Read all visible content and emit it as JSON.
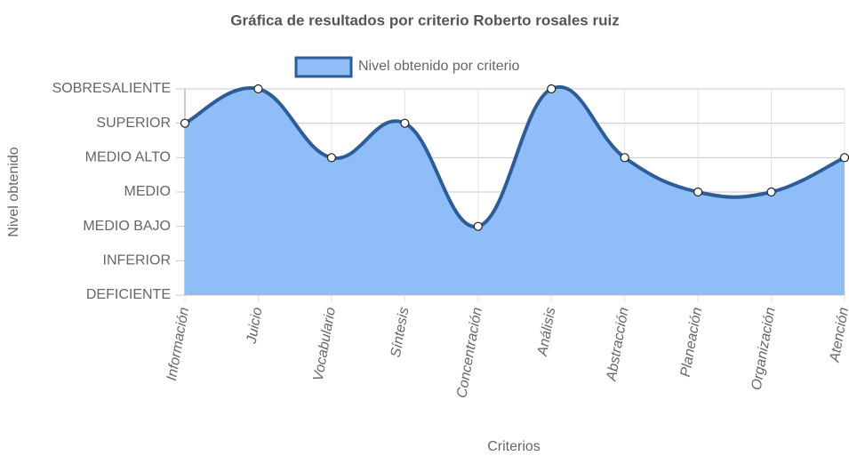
{
  "chart_data": {
    "type": "area",
    "title": "Gráfica de resultados por criterio Roberto rosales ruiz",
    "x_label": "Criterios",
    "y_label": "Nivel obtenido",
    "categories": [
      "Información",
      "Juicio",
      "Vocabulario",
      "Síntesis",
      "Concentración",
      "Análisis",
      "Abstracción",
      "Planeación",
      "Organización",
      "Atención"
    ],
    "series": [
      {
        "name": "Nivel obtenido por criterio",
        "color": "#2e5c96",
        "fill": "#8fbdf8",
        "values": [
          5,
          6,
          4,
          5,
          2,
          6,
          4,
          3,
          3,
          4
        ]
      }
    ],
    "ylim": [
      0,
      6
    ],
    "yticks": [
      {
        "value": 0,
        "label": "DEFICIENTE"
      },
      {
        "value": 1,
        "label": "INFERIOR"
      },
      {
        "value": 2,
        "label": "MEDIO BAJO"
      },
      {
        "value": 3,
        "label": "MEDIO"
      },
      {
        "value": 4,
        "label": "MEDIO ALTO"
      },
      {
        "value": 5,
        "label": "SUPERIOR"
      },
      {
        "value": 6,
        "label": "SOBRESALIENTE"
      }
    ],
    "grid": true,
    "legend": "top"
  }
}
